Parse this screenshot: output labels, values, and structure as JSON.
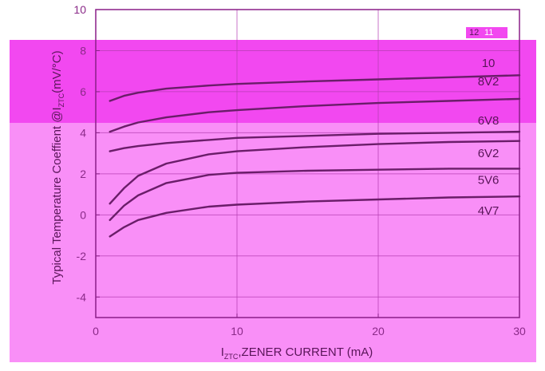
{
  "chart_data": {
    "type": "line",
    "xlabel": "I",
    "xlabel_sub": "ZTC",
    "xlabel_rest": ",ZENER CURRENT (mA)",
    "ylabel": "Typical Temperature Coeffient @I",
    "ylabel_sub": "ZTC",
    "ylabel_rest": "(mV/°C)",
    "xlim": [
      0,
      30
    ],
    "ylim": [
      -5,
      10
    ],
    "xticks": [
      "0",
      "10",
      "20",
      "30"
    ],
    "yticks": [
      "-4",
      "-2",
      "0",
      "2",
      "4",
      "6",
      "8",
      "10"
    ],
    "grid": true,
    "top_right_labels": [
      "12",
      "11"
    ],
    "series": [
      {
        "name": "10",
        "x": [
          1,
          2,
          3,
          5,
          8,
          10,
          15,
          20,
          25,
          30
        ],
        "y": [
          5.55,
          5.8,
          5.95,
          6.15,
          6.3,
          6.38,
          6.5,
          6.6,
          6.7,
          6.8
        ]
      },
      {
        "name": "8V2",
        "x": [
          1,
          2,
          3,
          5,
          8,
          10,
          15,
          20,
          25,
          30
        ],
        "y": [
          4.05,
          4.3,
          4.5,
          4.75,
          5.0,
          5.1,
          5.3,
          5.45,
          5.55,
          5.65
        ]
      },
      {
        "name": "6V8",
        "x": [
          1,
          2,
          3,
          5,
          8,
          10,
          15,
          20,
          25,
          30
        ],
        "y": [
          3.1,
          3.25,
          3.35,
          3.5,
          3.65,
          3.75,
          3.85,
          3.95,
          4.0,
          4.05
        ]
      },
      {
        "name": "6V2",
        "x": [
          1,
          2,
          3,
          5,
          8,
          10,
          15,
          20,
          25,
          30
        ],
        "y": [
          0.55,
          1.3,
          1.9,
          2.5,
          2.95,
          3.1,
          3.3,
          3.45,
          3.55,
          3.6
        ]
      },
      {
        "name": "5V6",
        "x": [
          1,
          2,
          3,
          5,
          8,
          10,
          15,
          20,
          25,
          30
        ],
        "y": [
          -0.25,
          0.45,
          0.95,
          1.55,
          1.95,
          2.05,
          2.15,
          2.2,
          2.25,
          2.25
        ]
      },
      {
        "name": "4V7",
        "x": [
          1,
          2,
          3,
          5,
          8,
          10,
          15,
          20,
          25,
          30
        ],
        "y": [
          -1.05,
          -0.6,
          -0.25,
          0.1,
          0.4,
          0.5,
          0.65,
          0.75,
          0.85,
          0.9
        ]
      }
    ],
    "series_label_y": [
      7.4,
      6.5,
      4.6,
      3.0,
      1.7,
      0.2
    ],
    "colors": {
      "magenta_bg": "#f98ff7",
      "magenta_strong": "#f248f0",
      "axis": "#8a1f88",
      "grid": "#b43db1",
      "curve": "#6a1d69",
      "text": "#5a1559",
      "ticklabel": "#8a2a88"
    }
  }
}
